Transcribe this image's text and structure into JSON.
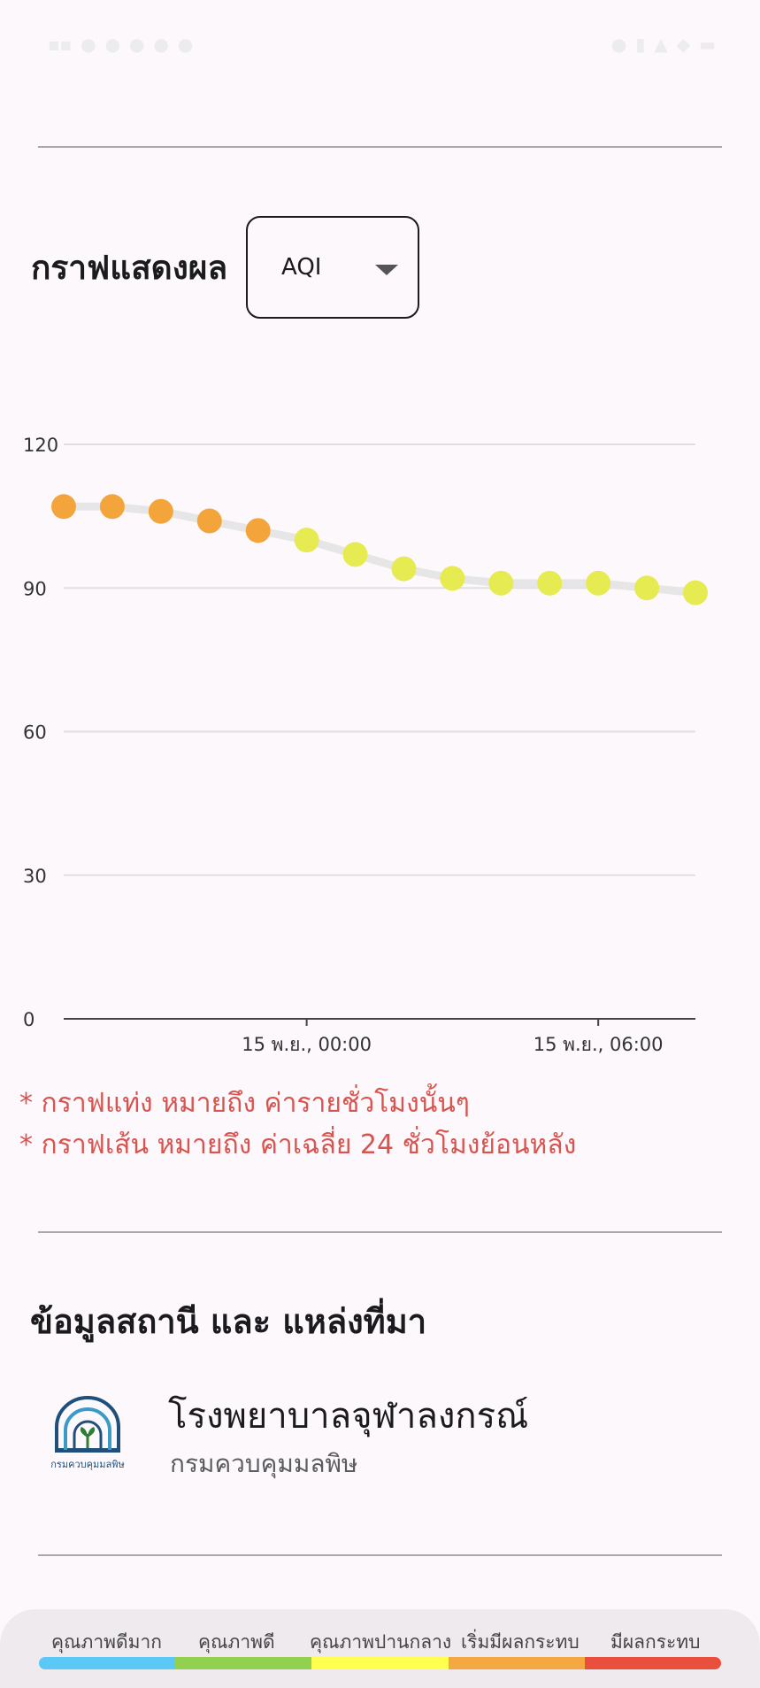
{
  "status_bar": {
    "left_items": [
      "3G",
      "LINE",
      "LINE",
      "record",
      "msg",
      "cloud",
      "image"
    ],
    "right_items": [
      "alarm",
      "vibrate",
      "signal",
      "wifi",
      "lte",
      "battery"
    ],
    "time_color": "#ecebee"
  },
  "graph": {
    "title": "กราฟแสดงผล",
    "dropdown_value": "AQI"
  },
  "chart_data": {
    "type": "line",
    "x": [
      "14 พ.ย., 19:00",
      "14 พ.ย., 20:00",
      "14 พ.ย., 21:00",
      "14 พ.ย., 22:00",
      "14 พ.ย., 23:00",
      "15 พ.ย., 00:00",
      "15 พ.ย., 01:00",
      "15 พ.ย., 02:00",
      "15 พ.ย., 03:00",
      "15 พ.ย., 04:00",
      "15 พ.ย., 05:00",
      "15 พ.ย., 06:00",
      "15 พ.ย., 07:00",
      "15 พ.ย., 08:00"
    ],
    "values": [
      107,
      107,
      106,
      104,
      102,
      100,
      97,
      94,
      92,
      91,
      91,
      91,
      90,
      89
    ],
    "point_colors": [
      "#f3a53b",
      "#f3a53b",
      "#f3a53b",
      "#f3a53b",
      "#f3a53b",
      "#e6eb52",
      "#e6eb52",
      "#e6eb52",
      "#e6eb52",
      "#e6eb52",
      "#e6eb52",
      "#e6eb52",
      "#e6eb52",
      "#e6eb52"
    ],
    "line_color": "#e6e6e6",
    "ylim": [
      0,
      120
    ],
    "yticks": [
      "0",
      "30",
      "60",
      "90",
      "120"
    ],
    "xtick_labels": [
      "15 พ.ย., 00:00",
      "15 พ.ย., 06:00"
    ],
    "grid": true
  },
  "notes": [
    "* กราฟแท่ง หมายถึง ค่ารายชั่วโมงนั้นๆ",
    "* กราฟเส้น หมายถึง ค่าเฉลี่ย 24 ชั่วโมงย้อนหลัง"
  ],
  "station": {
    "section_title": "ข้อมูลสถานี และ แหล่งที่มา",
    "name": "โรงพยาบาลจุฬาลงกรณ์",
    "source": "กรมควบคุมมลพิษ",
    "logo_text": "กรมควบคุมมลพิษ"
  },
  "legend": {
    "labels": [
      "คุณภาพดีมาก",
      "คุณภาพดี",
      "คุณภาพปานกลาง",
      "เริ่มมีผลกระทบ",
      "มีผลกระทบ"
    ],
    "colors": [
      "#5bc8f5",
      "#92d050",
      "#ffff4f",
      "#f5a742",
      "#ea4e3d"
    ]
  }
}
